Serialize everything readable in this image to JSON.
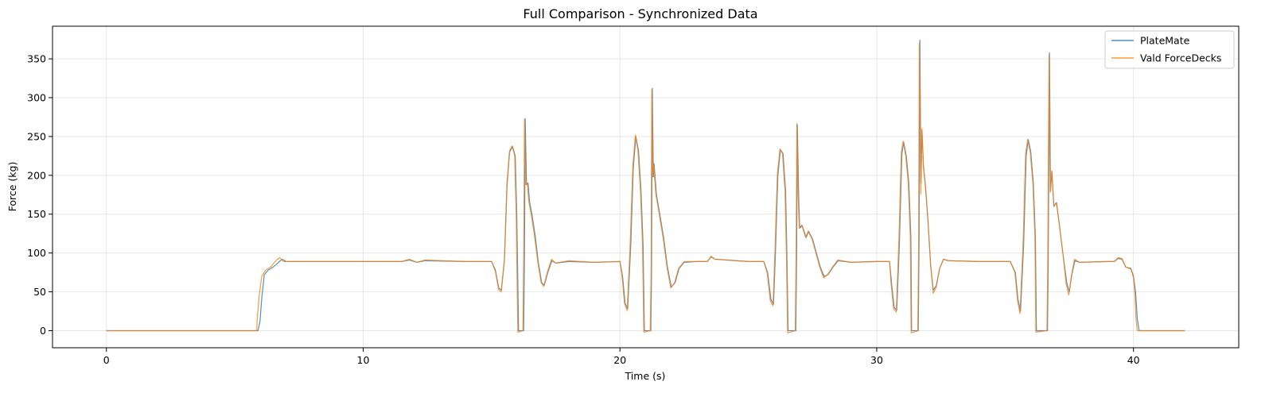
{
  "chart_data": {
    "type": "line",
    "title": "Full Comparison - Synchronized Data",
    "xlabel": "Time (s)",
    "ylabel": "Force (kg)",
    "xlim": [
      -2.1,
      44.1
    ],
    "ylim": [
      -22,
      392
    ],
    "xticks": [
      0,
      10,
      20,
      30,
      40
    ],
    "yticks": [
      0,
      50,
      100,
      150,
      200,
      250,
      300,
      350
    ],
    "grid": true,
    "legend_position": "top-right",
    "series": [
      {
        "name": "PlateMate",
        "color": "#1f77b4",
        "points": [
          [
            0,
            0
          ],
          [
            5.9,
            0
          ],
          [
            5.98,
            12
          ],
          [
            6.05,
            42
          ],
          [
            6.15,
            72
          ],
          [
            6.3,
            78
          ],
          [
            6.5,
            82
          ],
          [
            6.7,
            88
          ],
          [
            6.85,
            92
          ],
          [
            7.0,
            89
          ],
          [
            9,
            89
          ],
          [
            11.5,
            89
          ],
          [
            11.8,
            91
          ],
          [
            12.1,
            88
          ],
          [
            12.4,
            90
          ],
          [
            14,
            89
          ],
          [
            15.0,
            89
          ],
          [
            15.15,
            78
          ],
          [
            15.28,
            55
          ],
          [
            15.38,
            52
          ],
          [
            15.5,
            90
          ],
          [
            15.6,
            185
          ],
          [
            15.7,
            230
          ],
          [
            15.82,
            237
          ],
          [
            15.92,
            225
          ],
          [
            15.98,
            150
          ],
          [
            16.05,
            0
          ],
          [
            16.25,
            0
          ],
          [
            16.28,
            96
          ],
          [
            16.31,
            273
          ],
          [
            16.36,
            188
          ],
          [
            16.42,
            190
          ],
          [
            16.48,
            166
          ],
          [
            16.58,
            148
          ],
          [
            16.7,
            122
          ],
          [
            16.82,
            88
          ],
          [
            16.95,
            62
          ],
          [
            17.05,
            58
          ],
          [
            17.2,
            76
          ],
          [
            17.35,
            90
          ],
          [
            17.5,
            87
          ],
          [
            18,
            89
          ],
          [
            19,
            88
          ],
          [
            20,
            89
          ],
          [
            20.1,
            70
          ],
          [
            20.2,
            35
          ],
          [
            20.3,
            28
          ],
          [
            20.42,
            110
          ],
          [
            20.52,
            210
          ],
          [
            20.62,
            250
          ],
          [
            20.72,
            232
          ],
          [
            20.82,
            180
          ],
          [
            20.9,
            110
          ],
          [
            20.95,
            0
          ],
          [
            21.2,
            0
          ],
          [
            21.23,
            72
          ],
          [
            21.26,
            312
          ],
          [
            21.3,
            198
          ],
          [
            21.33,
            215
          ],
          [
            21.42,
            175
          ],
          [
            21.55,
            150
          ],
          [
            21.7,
            120
          ],
          [
            21.85,
            82
          ],
          [
            22.0,
            56
          ],
          [
            22.15,
            62
          ],
          [
            22.3,
            80
          ],
          [
            22.5,
            88
          ],
          [
            23,
            89
          ],
          [
            23.4,
            89
          ],
          [
            23.55,
            95
          ],
          [
            23.7,
            92
          ],
          [
            25,
            89
          ],
          [
            25.6,
            89
          ],
          [
            25.75,
            75
          ],
          [
            25.88,
            40
          ],
          [
            25.98,
            34
          ],
          [
            26.05,
            95
          ],
          [
            26.15,
            200
          ],
          [
            26.25,
            233
          ],
          [
            26.35,
            228
          ],
          [
            26.45,
            180
          ],
          [
            26.5,
            100
          ],
          [
            26.55,
            0
          ],
          [
            26.85,
            0
          ],
          [
            26.88,
            100
          ],
          [
            26.91,
            265
          ],
          [
            26.96,
            175
          ],
          [
            27.0,
            132
          ],
          [
            27.1,
            135
          ],
          [
            27.25,
            120
          ],
          [
            27.35,
            128
          ],
          [
            27.5,
            118
          ],
          [
            27.65,
            100
          ],
          [
            27.8,
            82
          ],
          [
            27.95,
            70
          ],
          [
            28.1,
            72
          ],
          [
            28.3,
            82
          ],
          [
            28.5,
            90
          ],
          [
            29,
            88
          ],
          [
            30,
            89
          ],
          [
            30.5,
            89
          ],
          [
            30.58,
            60
          ],
          [
            30.68,
            30
          ],
          [
            30.78,
            26
          ],
          [
            30.88,
            110
          ],
          [
            30.98,
            228
          ],
          [
            31.05,
            243
          ],
          [
            31.15,
            225
          ],
          [
            31.25,
            190
          ],
          [
            31.33,
            120
          ],
          [
            31.36,
            0
          ],
          [
            31.62,
            0
          ],
          [
            31.65,
            115
          ],
          [
            31.68,
            374
          ],
          [
            31.72,
            190
          ],
          [
            31.76,
            258
          ],
          [
            31.82,
            212
          ],
          [
            31.9,
            185
          ],
          [
            32.0,
            140
          ],
          [
            32.1,
            85
          ],
          [
            32.2,
            52
          ],
          [
            32.32,
            58
          ],
          [
            32.45,
            80
          ],
          [
            32.6,
            92
          ],
          [
            32.8,
            90
          ],
          [
            34,
            89
          ],
          [
            35.2,
            89
          ],
          [
            35.4,
            75
          ],
          [
            35.5,
            40
          ],
          [
            35.6,
            25
          ],
          [
            35.72,
            110
          ],
          [
            35.82,
            225
          ],
          [
            35.9,
            246
          ],
          [
            36.0,
            230
          ],
          [
            36.1,
            190
          ],
          [
            36.18,
            120
          ],
          [
            36.22,
            0
          ],
          [
            36.65,
            0
          ],
          [
            36.68,
            85
          ],
          [
            36.73,
            358
          ],
          [
            36.77,
            180
          ],
          [
            36.82,
            205
          ],
          [
            36.9,
            160
          ],
          [
            37.0,
            165
          ],
          [
            37.12,
            135
          ],
          [
            37.25,
            100
          ],
          [
            37.4,
            62
          ],
          [
            37.5,
            50
          ],
          [
            37.6,
            72
          ],
          [
            37.72,
            90
          ],
          [
            37.9,
            88
          ],
          [
            39,
            89
          ],
          [
            39.25,
            89
          ],
          [
            39.4,
            93
          ],
          [
            39.55,
            92
          ],
          [
            39.7,
            82
          ],
          [
            39.9,
            80
          ],
          [
            40.0,
            70
          ],
          [
            40.08,
            50
          ],
          [
            40.15,
            15
          ],
          [
            40.22,
            0
          ],
          [
            42,
            0
          ]
        ]
      },
      {
        "name": "Vald ForceDecks",
        "color": "#ff7f0e",
        "points": [
          [
            0,
            0
          ],
          [
            5.85,
            0
          ],
          [
            5.88,
            18
          ],
          [
            5.95,
            45
          ],
          [
            6.05,
            70
          ],
          [
            6.2,
            78
          ],
          [
            6.4,
            82
          ],
          [
            6.6,
            90
          ],
          [
            6.75,
            94
          ],
          [
            6.9,
            89
          ],
          [
            9,
            89
          ],
          [
            11.5,
            89
          ],
          [
            11.8,
            92
          ],
          [
            12.1,
            88
          ],
          [
            12.4,
            91
          ],
          [
            14,
            89
          ],
          [
            15.0,
            89
          ],
          [
            15.15,
            76
          ],
          [
            15.28,
            52
          ],
          [
            15.38,
            50
          ],
          [
            15.5,
            92
          ],
          [
            15.6,
            190
          ],
          [
            15.7,
            232
          ],
          [
            15.8,
            238
          ],
          [
            15.9,
            225
          ],
          [
            15.96,
            150
          ],
          [
            16.02,
            -2
          ],
          [
            16.22,
            0
          ],
          [
            16.25,
            96
          ],
          [
            16.28,
            272
          ],
          [
            16.33,
            188
          ],
          [
            16.39,
            190
          ],
          [
            16.45,
            166
          ],
          [
            16.55,
            148
          ],
          [
            16.67,
            122
          ],
          [
            16.8,
            88
          ],
          [
            16.93,
            62
          ],
          [
            17.03,
            57
          ],
          [
            17.18,
            76
          ],
          [
            17.33,
            92
          ],
          [
            17.5,
            87
          ],
          [
            18,
            90
          ],
          [
            19,
            88
          ],
          [
            20,
            89
          ],
          [
            20.08,
            70
          ],
          [
            20.18,
            35
          ],
          [
            20.28,
            26
          ],
          [
            20.4,
            112
          ],
          [
            20.5,
            212
          ],
          [
            20.6,
            252
          ],
          [
            20.7,
            232
          ],
          [
            20.8,
            180
          ],
          [
            20.88,
            110
          ],
          [
            20.93,
            -2
          ],
          [
            21.18,
            0
          ],
          [
            21.21,
            70
          ],
          [
            21.24,
            310
          ],
          [
            21.28,
            198
          ],
          [
            21.31,
            214
          ],
          [
            21.4,
            175
          ],
          [
            21.53,
            150
          ],
          [
            21.68,
            120
          ],
          [
            21.83,
            82
          ],
          [
            21.98,
            55
          ],
          [
            22.13,
            62
          ],
          [
            22.28,
            80
          ],
          [
            22.5,
            89
          ],
          [
            23,
            89
          ],
          [
            23.4,
            89
          ],
          [
            23.55,
            96
          ],
          [
            23.7,
            92
          ],
          [
            25,
            89
          ],
          [
            25.6,
            89
          ],
          [
            25.73,
            75
          ],
          [
            25.86,
            38
          ],
          [
            25.96,
            32
          ],
          [
            26.03,
            95
          ],
          [
            26.13,
            202
          ],
          [
            26.23,
            234
          ],
          [
            26.33,
            228
          ],
          [
            26.43,
            180
          ],
          [
            26.48,
            100
          ],
          [
            26.53,
            -3
          ],
          [
            26.83,
            0
          ],
          [
            26.86,
            100
          ],
          [
            26.89,
            267
          ],
          [
            26.94,
            175
          ],
          [
            26.98,
            132
          ],
          [
            27.08,
            136
          ],
          [
            27.23,
            120
          ],
          [
            27.33,
            128
          ],
          [
            27.48,
            118
          ],
          [
            27.63,
            100
          ],
          [
            27.78,
            82
          ],
          [
            27.93,
            68
          ],
          [
            28.08,
            72
          ],
          [
            28.28,
            82
          ],
          [
            28.48,
            91
          ],
          [
            29,
            88
          ],
          [
            30,
            89
          ],
          [
            30.5,
            89
          ],
          [
            30.56,
            60
          ],
          [
            30.66,
            28
          ],
          [
            30.76,
            24
          ],
          [
            30.86,
            112
          ],
          [
            30.96,
            230
          ],
          [
            31.03,
            244
          ],
          [
            31.13,
            225
          ],
          [
            31.23,
            190
          ],
          [
            31.31,
            120
          ],
          [
            31.34,
            -3
          ],
          [
            31.6,
            0
          ],
          [
            31.63,
            112
          ],
          [
            31.66,
            370
          ],
          [
            31.72,
            176
          ],
          [
            31.76,
            260
          ],
          [
            31.82,
            210
          ],
          [
            31.9,
            185
          ],
          [
            32.0,
            140
          ],
          [
            32.1,
            85
          ],
          [
            32.2,
            48
          ],
          [
            32.32,
            56
          ],
          [
            32.45,
            80
          ],
          [
            32.6,
            92
          ],
          [
            32.8,
            90
          ],
          [
            34,
            89
          ],
          [
            35.2,
            89
          ],
          [
            35.38,
            75
          ],
          [
            35.48,
            40
          ],
          [
            35.58,
            22
          ],
          [
            35.7,
            112
          ],
          [
            35.8,
            228
          ],
          [
            35.88,
            246
          ],
          [
            35.98,
            230
          ],
          [
            36.08,
            190
          ],
          [
            36.16,
            120
          ],
          [
            36.2,
            -2
          ],
          [
            36.63,
            0
          ],
          [
            36.66,
            85
          ],
          [
            36.71,
            355
          ],
          [
            36.76,
            178
          ],
          [
            36.82,
            206
          ],
          [
            36.9,
            160
          ],
          [
            37.0,
            164
          ],
          [
            37.12,
            135
          ],
          [
            37.25,
            100
          ],
          [
            37.38,
            60
          ],
          [
            37.48,
            46
          ],
          [
            37.58,
            70
          ],
          [
            37.7,
            92
          ],
          [
            37.9,
            88
          ],
          [
            39,
            89
          ],
          [
            39.25,
            89
          ],
          [
            39.4,
            94
          ],
          [
            39.55,
            93
          ],
          [
            39.7,
            82
          ],
          [
            39.9,
            79
          ],
          [
            40.0,
            68
          ],
          [
            40.05,
            50
          ],
          [
            40.1,
            15
          ],
          [
            40.15,
            0
          ],
          [
            42,
            0
          ]
        ]
      }
    ]
  }
}
